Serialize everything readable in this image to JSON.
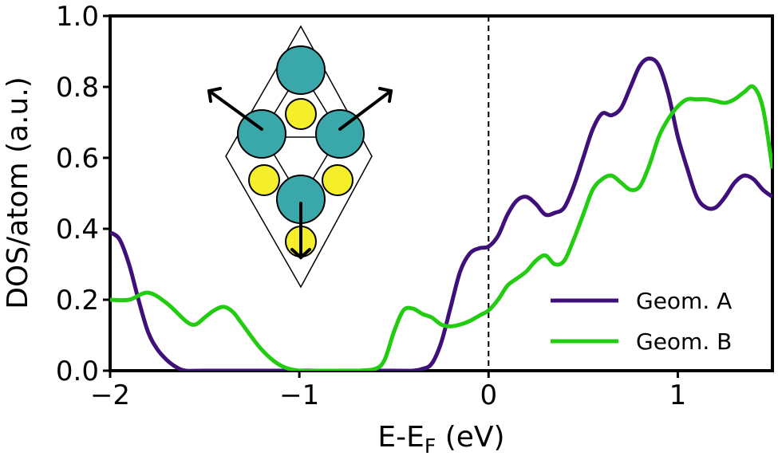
{
  "chart_data": {
    "type": "line",
    "xlabel": "E-E",
    "xlabel_sub": "F",
    "xlabel_unit": " (eV)",
    "ylabel": "DOS/atom (a.u.)",
    "xlim": [
      -2,
      1.5
    ],
    "ylim": [
      0,
      1.0
    ],
    "xticks": [
      -2,
      -1,
      0,
      1
    ],
    "xtick_labels": [
      "−2",
      "−1",
      "0",
      "1"
    ],
    "yticks": [
      0,
      0.2,
      0.4,
      0.6,
      0.8,
      1.0
    ],
    "ytick_labels": [
      "0.0",
      "0.2",
      "0.4",
      "0.6",
      "0.8",
      "1.0"
    ],
    "fermi_line_x": 0,
    "legend_position": "lower-right",
    "colors": {
      "geom_a": "#3f0f7a",
      "geom_b": "#22cc11",
      "atom_teal": "#3aa7aa",
      "atom_yellow": "#f4ef2a"
    },
    "series": [
      {
        "name": "Geom. A",
        "color": "#3f0f7a",
        "x": [
          -2.0,
          -1.95,
          -1.9,
          -1.85,
          -1.8,
          -1.75,
          -1.7,
          -1.65,
          -1.6,
          -1.5,
          -1.0,
          -0.5,
          -0.4,
          -0.35,
          -0.3,
          -0.25,
          -0.2,
          -0.15,
          -0.1,
          -0.05,
          0.0,
          0.05,
          0.1,
          0.15,
          0.2,
          0.25,
          0.3,
          0.35,
          0.4,
          0.45,
          0.5,
          0.55,
          0.6,
          0.65,
          0.7,
          0.75,
          0.8,
          0.85,
          0.9,
          0.95,
          1.0,
          1.05,
          1.1,
          1.15,
          1.2,
          1.25,
          1.3,
          1.35,
          1.4,
          1.45,
          1.5
        ],
        "y": [
          0.39,
          0.37,
          0.3,
          0.2,
          0.11,
          0.06,
          0.03,
          0.01,
          0.0,
          0.0,
          0.0,
          0.0,
          0.0,
          0.005,
          0.02,
          0.08,
          0.18,
          0.28,
          0.33,
          0.345,
          0.35,
          0.38,
          0.44,
          0.48,
          0.49,
          0.47,
          0.44,
          0.445,
          0.46,
          0.52,
          0.6,
          0.68,
          0.725,
          0.72,
          0.74,
          0.8,
          0.86,
          0.88,
          0.86,
          0.78,
          0.66,
          0.57,
          0.49,
          0.46,
          0.46,
          0.49,
          0.53,
          0.55,
          0.54,
          0.51,
          0.49
        ]
      },
      {
        "name": "Geom. B",
        "color": "#22cc11",
        "x": [
          -2.0,
          -1.9,
          -1.8,
          -1.7,
          -1.6,
          -1.55,
          -1.5,
          -1.45,
          -1.4,
          -1.35,
          -1.3,
          -1.2,
          -1.1,
          -1.0,
          -0.9,
          -0.8,
          -0.7,
          -0.6,
          -0.55,
          -0.5,
          -0.45,
          -0.4,
          -0.35,
          -0.3,
          -0.25,
          -0.2,
          -0.15,
          -0.1,
          -0.05,
          0.0,
          0.05,
          0.1,
          0.15,
          0.2,
          0.25,
          0.3,
          0.35,
          0.4,
          0.45,
          0.5,
          0.55,
          0.6,
          0.65,
          0.7,
          0.75,
          0.8,
          0.85,
          0.9,
          0.95,
          1.0,
          1.05,
          1.1,
          1.15,
          1.2,
          1.25,
          1.3,
          1.35,
          1.4,
          1.45,
          1.5
        ],
        "y": [
          0.2,
          0.2,
          0.22,
          0.19,
          0.14,
          0.13,
          0.15,
          0.17,
          0.18,
          0.165,
          0.13,
          0.06,
          0.015,
          0.0,
          0.0,
          0.0,
          0.0,
          0.005,
          0.03,
          0.11,
          0.17,
          0.175,
          0.16,
          0.15,
          0.13,
          0.125,
          0.13,
          0.14,
          0.155,
          0.17,
          0.2,
          0.24,
          0.26,
          0.28,
          0.31,
          0.325,
          0.3,
          0.31,
          0.37,
          0.44,
          0.51,
          0.54,
          0.55,
          0.53,
          0.51,
          0.52,
          0.58,
          0.66,
          0.71,
          0.745,
          0.765,
          0.765,
          0.765,
          0.76,
          0.755,
          0.765,
          0.785,
          0.8,
          0.74,
          0.57
        ]
      }
    ]
  }
}
